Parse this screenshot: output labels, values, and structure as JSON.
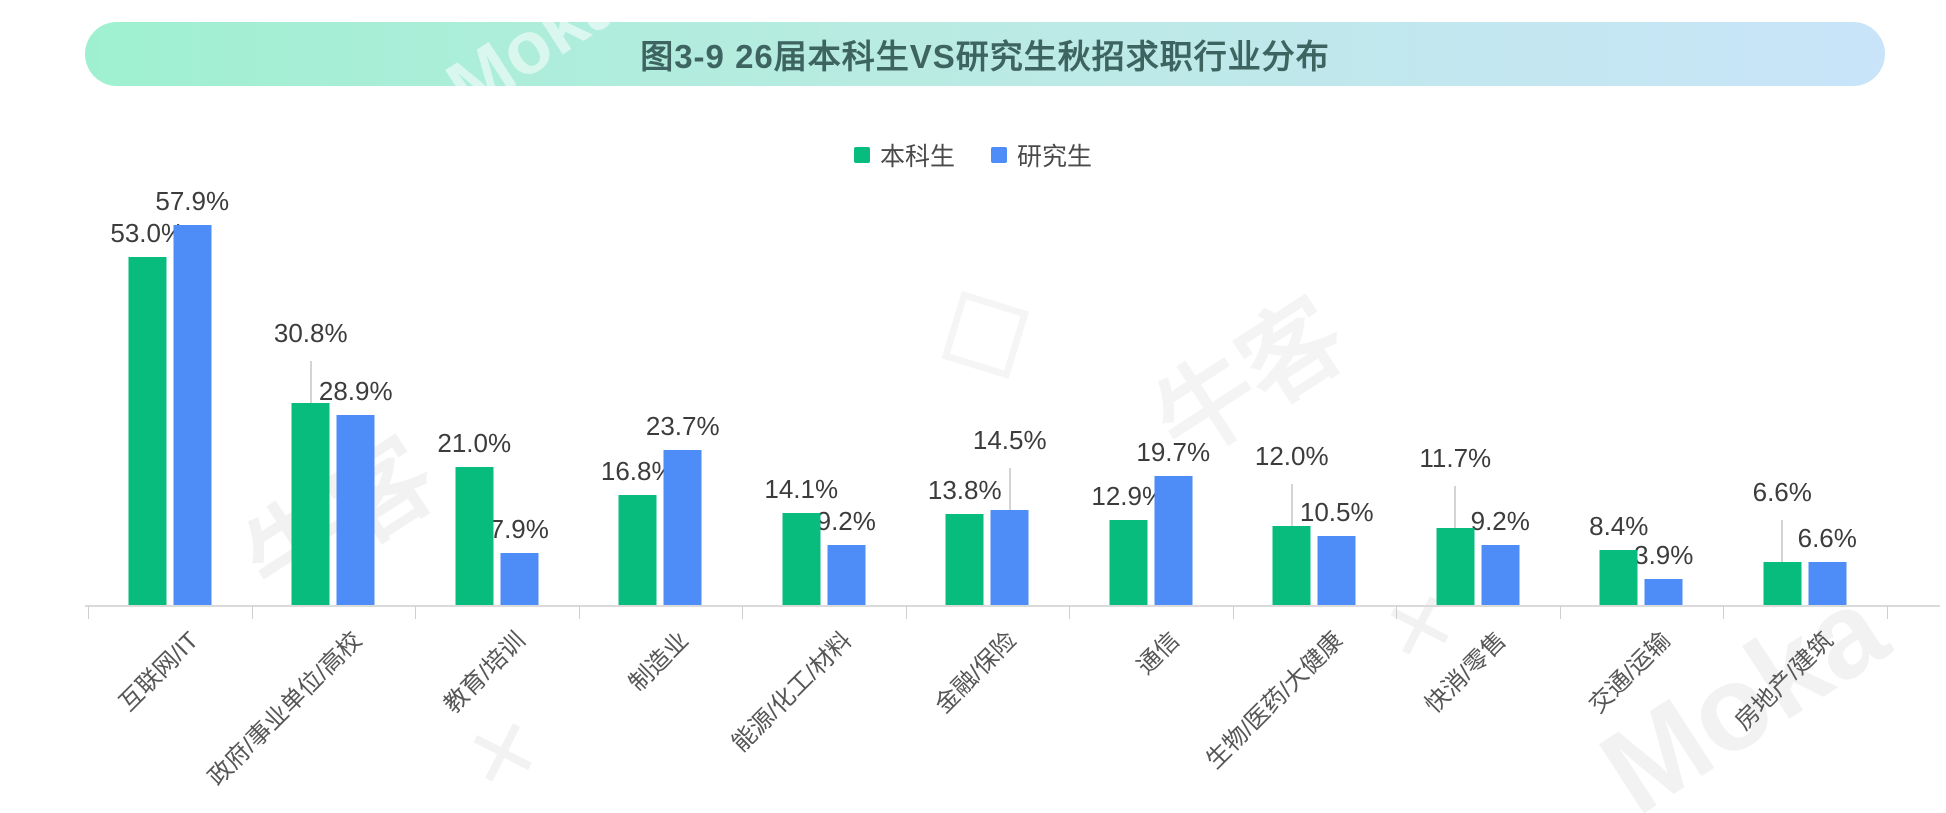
{
  "title": {
    "text": "图3-9 26届本科生VS研究生秋招求职行业分布"
  },
  "legend": {
    "items": [
      {
        "label": "本科生",
        "color": "#07bc7c"
      },
      {
        "label": "研究生",
        "color": "#4e8df7"
      }
    ]
  },
  "chart_data": {
    "type": "bar",
    "title": "图3-9 26届本科生VS研究生秋招求职行业分布",
    "categories": [
      "互联网/IT",
      "政府/事业单位/高校",
      "教育/培训",
      "制造业",
      "能源/化工/材料",
      "金融/保险",
      "通信",
      "生物/医药/大健康",
      "快消/零售",
      "交通/运输",
      "房地产/建筑"
    ],
    "series": [
      {
        "name": "本科生",
        "color": "#07bc7c",
        "values": [
          53.0,
          30.8,
          21.0,
          16.8,
          14.1,
          13.8,
          12.9,
          12.0,
          11.7,
          8.4,
          6.6
        ],
        "data_labels": [
          "53.0%",
          "30.8%",
          "21.0%",
          "16.8%",
          "14.1%",
          "13.8%",
          "12.9%",
          "12.0%",
          "11.7%",
          "8.4%",
          "6.6%"
        ],
        "label_leader_lines": [
          false,
          true,
          false,
          false,
          false,
          false,
          false,
          true,
          true,
          false,
          true
        ]
      },
      {
        "name": "研究生",
        "color": "#4e8df7",
        "values": [
          57.9,
          28.9,
          7.9,
          23.7,
          9.2,
          14.5,
          19.7,
          10.5,
          9.2,
          3.9,
          6.6
        ],
        "data_labels": [
          "57.9%",
          "28.9%",
          "7.9%",
          "23.7%",
          "9.2%",
          "14.5%",
          "19.7%",
          "10.5%",
          "9.2%",
          "3.9%",
          "6.6%"
        ],
        "label_leader_lines": [
          false,
          false,
          false,
          false,
          false,
          true,
          false,
          false,
          false,
          false,
          false
        ]
      }
    ],
    "ylabel": "",
    "xlabel": "",
    "ylim": [
      0,
      60
    ],
    "value_unit": "%",
    "grid": false,
    "legend_position": "top"
  },
  "watermarks": {
    "brand_latin": "Moka",
    "brand_cjk": "牛客",
    "separator": "✕"
  }
}
